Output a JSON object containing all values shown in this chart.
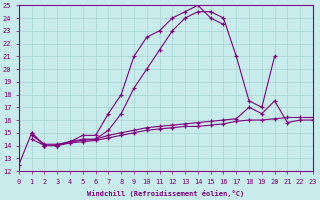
{
  "xlabel": "Windchill (Refroidissement éolien,°C)",
  "xlim": [
    0,
    23
  ],
  "ylim": [
    12,
    25
  ],
  "xticks": [
    0,
    1,
    2,
    3,
    4,
    5,
    6,
    7,
    8,
    9,
    10,
    11,
    12,
    13,
    14,
    15,
    16,
    17,
    18,
    19,
    20,
    21,
    22,
    23
  ],
  "yticks": [
    12,
    13,
    14,
    15,
    16,
    17,
    18,
    19,
    20,
    21,
    22,
    23,
    24,
    25
  ],
  "bg_color": "#c8ecec",
  "line_color": "#800080",
  "grid_color": "#a0cccc",
  "line1_x": [
    0,
    1,
    2,
    3,
    4,
    5,
    6,
    7,
    8,
    9,
    10,
    11,
    12,
    13,
    14,
    15,
    16
  ],
  "line1_y": [
    12.5,
    15.0,
    14.0,
    14.0,
    14.3,
    14.8,
    14.8,
    16.5,
    18.0,
    21.0,
    22.5,
    23.0,
    24.0,
    24.5,
    25.0,
    24.0,
    23.5
  ],
  "line2_x": [
    1,
    2,
    3,
    4,
    5,
    6,
    7,
    8,
    9,
    10,
    11,
    12,
    13,
    14,
    15,
    16,
    17,
    18,
    19,
    20
  ],
  "line2_y": [
    15.0,
    14.0,
    14.0,
    14.3,
    14.5,
    14.5,
    15.2,
    16.5,
    18.5,
    20.0,
    21.5,
    23.0,
    24.0,
    24.5,
    24.5,
    24.0,
    21.0,
    17.5,
    17.0,
    21.0
  ],
  "line3_x": [
    1,
    2,
    3,
    4,
    5,
    6,
    7,
    8,
    9,
    10,
    11,
    12,
    13,
    14,
    15,
    16,
    17,
    18,
    19,
    20,
    21,
    22,
    23
  ],
  "line3_y": [
    14.5,
    14.0,
    14.0,
    14.2,
    14.3,
    14.4,
    14.6,
    14.8,
    15.0,
    15.2,
    15.3,
    15.4,
    15.5,
    15.5,
    15.6,
    15.7,
    15.9,
    16.0,
    16.0,
    16.1,
    16.2,
    16.2,
    16.2
  ],
  "line4_x": [
    1,
    2,
    3,
    4,
    5,
    6,
    7,
    8,
    9,
    10,
    11,
    12,
    13,
    14,
    15,
    16,
    17,
    18,
    19,
    20,
    21,
    22,
    23
  ],
  "line4_y": [
    14.8,
    14.1,
    14.1,
    14.3,
    14.4,
    14.5,
    14.8,
    15.0,
    15.2,
    15.4,
    15.5,
    15.6,
    15.7,
    15.8,
    15.9,
    16.0,
    16.1,
    17.0,
    16.5,
    17.5,
    15.8,
    16.0,
    16.0
  ]
}
